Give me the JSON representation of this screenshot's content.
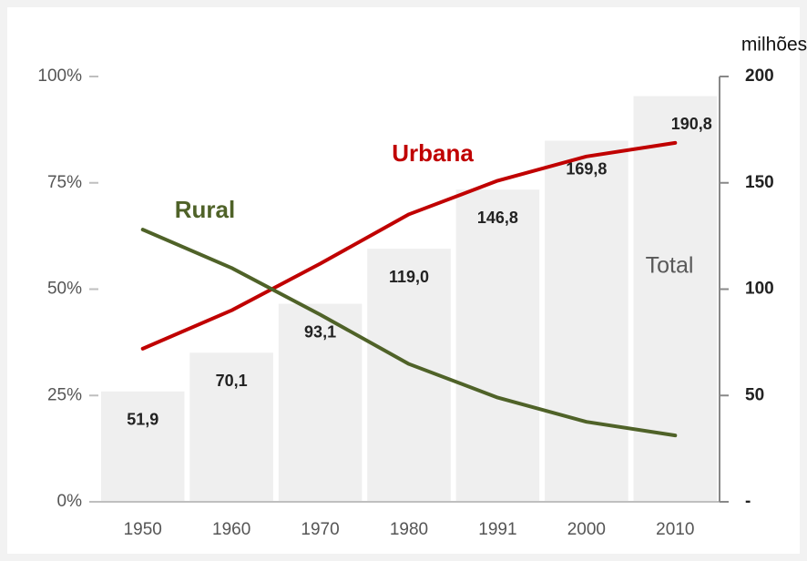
{
  "chart_data": {
    "type": "bar",
    "categories": [
      "1950",
      "1960",
      "1970",
      "1980",
      "1991",
      "2000",
      "2010"
    ],
    "series": [
      {
        "name": "Total",
        "type": "bar",
        "axis": "y2",
        "color": "#efefef",
        "label_color": "#595959",
        "values": [
          51.9,
          70.1,
          93.1,
          119.0,
          146.8,
          169.8,
          190.8
        ],
        "value_labels": [
          "51,9",
          "70,1",
          "93,1",
          "119,0",
          "146,8",
          "169,8",
          "190,8"
        ]
      },
      {
        "name": "Urbana",
        "type": "line",
        "axis": "y",
        "color": "#c00000",
        "values": [
          36,
          45,
          56,
          67.6,
          75.5,
          81.2,
          84.4
        ]
      },
      {
        "name": "Rural",
        "type": "line",
        "axis": "y",
        "color": "#4f6228",
        "values": [
          64,
          55,
          44,
          32.4,
          24.5,
          18.8,
          15.6
        ]
      }
    ],
    "y2_label": "milhões",
    "ylim": [
      0,
      100
    ],
    "yticks": [
      {
        "value": 0,
        "label": "0%"
      },
      {
        "value": 25,
        "label": "25%"
      },
      {
        "value": 50,
        "label": "50%"
      },
      {
        "value": 75,
        "label": "75%"
      },
      {
        "value": 100,
        "label": "100%"
      }
    ],
    "y2lim": [
      0,
      200
    ],
    "y2ticks": [
      {
        "value": 0,
        "label": "-"
      },
      50,
      100,
      150,
      200
    ]
  }
}
